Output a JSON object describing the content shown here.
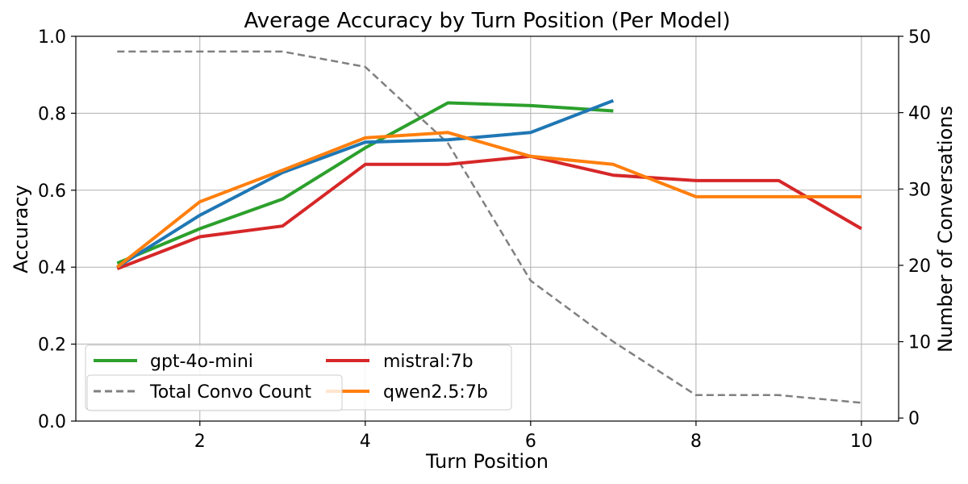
{
  "chart_data": {
    "type": "line",
    "title": "Average Accuracy by Turn Position (Per Model)",
    "xlabel": "Turn Position",
    "ylabel": "Accuracy",
    "y2label": "Number of Conversations",
    "xlim": [
      0.5,
      10.45
    ],
    "ylim": [
      0.0,
      1.0
    ],
    "y2lim": [
      -0.4,
      50.0
    ],
    "x_ticks": [
      2,
      4,
      6,
      8,
      10
    ],
    "y_ticks": [
      0.0,
      0.2,
      0.4,
      0.6,
      0.8,
      1.0
    ],
    "y2_ticks": [
      0,
      10,
      20,
      30,
      40,
      50
    ],
    "grid": true,
    "legend_placement": "lower-left",
    "series": [
      {
        "name": "gpt-4o-mini",
        "axis": "left",
        "color": "#2ca02c",
        "style": "solid",
        "x": [
          1,
          2,
          3,
          4,
          5,
          6,
          7
        ],
        "values": [
          0.41,
          0.5,
          0.577,
          0.71,
          0.827,
          0.82,
          0.806
        ]
      },
      {
        "name": "mistral:7b",
        "axis": "left",
        "color": "#d62728",
        "style": "solid",
        "x": [
          1,
          2,
          3,
          4,
          5,
          6,
          7,
          8,
          9,
          10
        ],
        "values": [
          0.396,
          0.479,
          0.507,
          0.667,
          0.667,
          0.688,
          0.639,
          0.625,
          0.625,
          0.5
        ]
      },
      {
        "name": "",
        "axis": "left",
        "color": "#1f77b4",
        "style": "solid",
        "x": [
          1,
          2,
          3,
          4,
          5,
          6,
          7
        ],
        "values": [
          0.4,
          0.535,
          0.646,
          0.725,
          0.731,
          0.75,
          0.833
        ]
      },
      {
        "name": "qwen2.5:7b",
        "axis": "left",
        "color": "#ff7f0e",
        "style": "solid",
        "x": [
          1,
          2,
          3,
          4,
          5,
          6,
          7,
          8,
          9,
          10
        ],
        "values": [
          0.4,
          0.57,
          0.652,
          0.736,
          0.75,
          0.688,
          0.667,
          0.583,
          0.583,
          0.583
        ]
      },
      {
        "name": "Total Convo Count",
        "axis": "right",
        "color": "#808080",
        "style": "dashed",
        "x": [
          1,
          2,
          3,
          4,
          5,
          6,
          7,
          8,
          9,
          10
        ],
        "values": [
          48,
          48,
          48,
          46,
          36,
          18,
          10,
          3,
          3,
          2
        ]
      }
    ]
  }
}
